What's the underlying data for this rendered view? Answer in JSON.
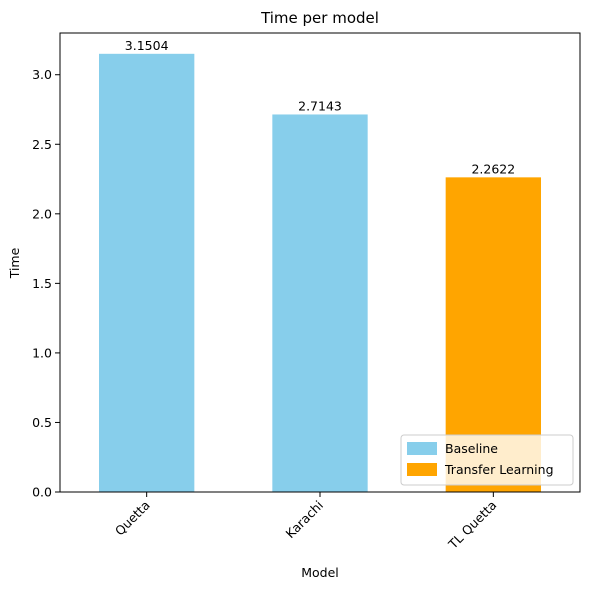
{
  "chart_data": {
    "type": "bar",
    "title": "Time per model",
    "xlabel": "Model",
    "ylabel": "Time",
    "categories": [
      "Quetta",
      "Karachi",
      "TL Quetta"
    ],
    "values": [
      3.1504,
      2.7143,
      2.2622
    ],
    "data_labels": [
      "3.1504",
      "2.7143",
      "2.2622"
    ],
    "bar_series": [
      "Baseline",
      "Baseline",
      "Transfer Learning"
    ],
    "ylim": [
      0,
      3.3
    ],
    "yticks": [
      0.0,
      0.5,
      1.0,
      1.5,
      2.0,
      2.5,
      3.0
    ],
    "ytick_labels": [
      "0.0",
      "0.5",
      "1.0",
      "1.5",
      "2.0",
      "2.5",
      "3.0"
    ],
    "grid": false,
    "legend": {
      "placement": "lower-right",
      "entries": [
        {
          "name": "Baseline",
          "color": "#87ceeb"
        },
        {
          "name": "Transfer Learning",
          "color": "#ffa500"
        }
      ]
    }
  }
}
